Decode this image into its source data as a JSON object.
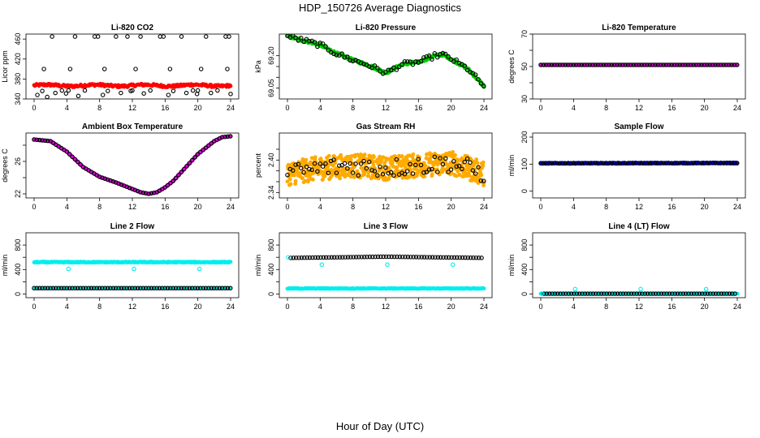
{
  "title": "HDP_150726  Average Diagnostics",
  "xlabel": "Hour of Day (UTC)",
  "chart_data": [
    {
      "type": "scatter",
      "title": "Li-820 CO2",
      "ylabel": "Licor ppm",
      "xlim": [
        0,
        24
      ],
      "ylim": [
        340,
        470
      ],
      "xticks": [
        0,
        4,
        8,
        12,
        16,
        20,
        24
      ],
      "yticks": [
        340,
        380,
        420,
        460
      ],
      "series": [
        {
          "color": "#ff0000",
          "marker": "filled",
          "x_range": [
            0,
            24
          ],
          "step": 0.1,
          "base": 367,
          "amp": 1.5,
          "period": 6,
          "noise": 2.5
        },
        {
          "color": "#000000",
          "marker": "open",
          "points": [
            [
              0.4,
              348
            ],
            [
              1.0,
              356
            ],
            [
              1.6,
              344
            ],
            [
              2.2,
              465
            ],
            [
              2.6,
              352
            ],
            [
              3.4,
              357
            ],
            [
              3.9,
              351
            ],
            [
              4.4,
              400
            ],
            [
              5.0,
              465
            ],
            [
              5.4,
              346
            ],
            [
              6.2,
              357
            ],
            [
              7.4,
              465
            ],
            [
              7.8,
              465
            ],
            [
              8.4,
              348
            ],
            [
              9.0,
              356
            ],
            [
              10.0,
              465
            ],
            [
              10.6,
              352
            ],
            [
              11.4,
              465
            ],
            [
              11.8,
              356
            ],
            [
              12.4,
              400
            ],
            [
              13.0,
              465
            ],
            [
              13.4,
              351
            ],
            [
              14.2,
              357
            ],
            [
              15.4,
              465
            ],
            [
              15.8,
              465
            ],
            [
              16.4,
              348
            ],
            [
              17.0,
              356
            ],
            [
              18.0,
              465
            ],
            [
              18.6,
              352
            ],
            [
              19.4,
              357
            ],
            [
              19.9,
              350
            ],
            [
              20.4,
              400
            ],
            [
              21.0,
              465
            ],
            [
              21.6,
              352
            ],
            [
              22.4,
              357
            ],
            [
              23.4,
              465
            ],
            [
              23.8,
              465
            ],
            [
              24.0,
              350
            ],
            [
              1.2,
              400
            ],
            [
              8.6,
              400
            ],
            [
              16.6,
              400
            ],
            [
              23.6,
              400
            ],
            [
              4.2,
              357
            ],
            [
              12.0,
              357
            ],
            [
              20.0,
              357
            ]
          ]
        }
      ]
    },
    {
      "type": "scatter",
      "title": "Li-820 Pressure",
      "ylabel": "kPa",
      "xlim": [
        0,
        24
      ],
      "ylim": [
        69.0,
        69.3
      ],
      "xticks": [
        0,
        4,
        8,
        12,
        16,
        20,
        24
      ],
      "yticks": [
        69.05,
        69.1,
        69.15,
        69.2
      ],
      "yticklabels": [
        "69.05",
        "",
        "",
        "69.20"
      ],
      "series": [
        {
          "color": "#00cc00",
          "marker": "filled",
          "curve": [
            [
              0,
              69.29
            ],
            [
              2,
              69.27
            ],
            [
              4,
              69.25
            ],
            [
              6,
              69.21
            ],
            [
              8,
              69.18
            ],
            [
              10,
              69.155
            ],
            [
              12,
              69.12
            ],
            [
              13,
              69.14
            ],
            [
              14,
              69.16
            ],
            [
              16,
              69.17
            ],
            [
              18,
              69.2
            ],
            [
              19,
              69.205
            ],
            [
              20,
              69.185
            ],
            [
              22,
              69.14
            ],
            [
              23,
              69.1
            ],
            [
              24,
              69.06
            ]
          ],
          "step": 0.08,
          "noise": 0.006
        },
        {
          "color": "#000000",
          "marker": "open",
          "curve": [
            [
              0,
              69.29
            ],
            [
              2,
              69.27
            ],
            [
              4,
              69.25
            ],
            [
              6,
              69.21
            ],
            [
              8,
              69.18
            ],
            [
              10,
              69.155
            ],
            [
              12,
              69.12
            ],
            [
              13,
              69.14
            ],
            [
              14,
              69.16
            ],
            [
              16,
              69.17
            ],
            [
              18,
              69.2
            ],
            [
              19,
              69.205
            ],
            [
              20,
              69.185
            ],
            [
              22,
              69.14
            ],
            [
              23,
              69.1
            ],
            [
              24,
              69.06
            ]
          ],
          "step": 0.333,
          "noise": 0.012
        }
      ]
    },
    {
      "type": "scatter",
      "title": "Li-820 Temperature",
      "ylabel": "degrees C",
      "xlim": [
        0,
        24
      ],
      "ylim": [
        30,
        70
      ],
      "xticks": [
        0,
        4,
        8,
        12,
        16,
        20,
        24
      ],
      "yticks": [
        30,
        40,
        50,
        60,
        70
      ],
      "yticklabels": [
        "30",
        "",
        "50",
        "",
        "70"
      ],
      "series": [
        {
          "color": "#dd00dd",
          "marker": "filled",
          "curve": [
            [
              0,
              51
            ],
            [
              24,
              51
            ]
          ],
          "step": 0.08,
          "noise": 0
        },
        {
          "color": "#000000",
          "marker": "open",
          "curve": [
            [
              0,
              51
            ],
            [
              24,
              51
            ]
          ],
          "step": 0.333,
          "noise": 0
        }
      ]
    },
    {
      "type": "scatter",
      "title": "Ambient Box Temperature",
      "ylabel": "degrees C",
      "xlim": [
        0,
        24
      ],
      "ylim": [
        21.5,
        29.5
      ],
      "xticks": [
        0,
        4,
        8,
        12,
        16,
        20,
        24
      ],
      "yticks": [
        22,
        24,
        26,
        28
      ],
      "yticklabels": [
        "22",
        "",
        "26",
        ""
      ],
      "series": [
        {
          "color": "#dd00dd",
          "marker": "filled",
          "curve": [
            [
              0,
              28.7
            ],
            [
              2,
              28.5
            ],
            [
              4,
              27.2
            ],
            [
              6,
              25.3
            ],
            [
              8,
              24.1
            ],
            [
              10,
              23.4
            ],
            [
              12,
              22.6
            ],
            [
              13,
              22.2
            ],
            [
              14,
              22.0
            ],
            [
              15,
              22.2
            ],
            [
              16,
              22.8
            ],
            [
              17,
              23.6
            ],
            [
              18,
              24.7
            ],
            [
              19,
              25.8
            ],
            [
              20,
              26.9
            ],
            [
              22,
              28.5
            ],
            [
              23,
              29.0
            ],
            [
              24,
              29.1
            ]
          ],
          "step": 0.08,
          "noise": 0
        },
        {
          "color": "#000000",
          "marker": "open",
          "curve": [
            [
              0,
              28.7
            ],
            [
              2,
              28.5
            ],
            [
              4,
              27.2
            ],
            [
              6,
              25.3
            ],
            [
              8,
              24.1
            ],
            [
              10,
              23.4
            ],
            [
              12,
              22.6
            ],
            [
              13,
              22.2
            ],
            [
              14,
              22.0
            ],
            [
              15,
              22.2
            ],
            [
              16,
              22.8
            ],
            [
              17,
              23.6
            ],
            [
              18,
              24.7
            ],
            [
              19,
              25.8
            ],
            [
              20,
              26.9
            ],
            [
              22,
              28.5
            ],
            [
              23,
              29.0
            ],
            [
              24,
              29.1
            ]
          ],
          "step": 0.333,
          "noise": 0
        }
      ]
    },
    {
      "type": "scatter",
      "title": "Gas Stream RH",
      "ylabel": "percent",
      "xlim": [
        0,
        24
      ],
      "ylim": [
        2.33,
        2.45
      ],
      "xticks": [
        0,
        4,
        8,
        12,
        16,
        20,
        24
      ],
      "yticks": [
        2.34,
        2.36,
        2.38,
        2.4,
        2.42
      ],
      "yticklabels": [
        "2.34",
        "",
        "",
        "2.40",
        ""
      ],
      "series": [
        {
          "color": "#ffaa00",
          "marker": "filled",
          "curve": [
            [
              0,
              2.375
            ],
            [
              4,
              2.385
            ],
            [
              8,
              2.39
            ],
            [
              12,
              2.385
            ],
            [
              16,
              2.39
            ],
            [
              20,
              2.395
            ],
            [
              24,
              2.375
            ]
          ],
          "step": 0.04,
          "noise": 0.022
        },
        {
          "color": "#000000",
          "marker": "open",
          "curve": [
            [
              0,
              2.375
            ],
            [
              4,
              2.385
            ],
            [
              8,
              2.39
            ],
            [
              12,
              2.385
            ],
            [
              16,
              2.39
            ],
            [
              20,
              2.395
            ],
            [
              24,
              2.375
            ]
          ],
          "step": 0.333,
          "noise": 0.018
        }
      ]
    },
    {
      "type": "scatter",
      "title": "Sample Flow",
      "ylabel": "ml/min",
      "xlim": [
        0,
        24
      ],
      "ylim": [
        -25,
        215
      ],
      "xticks": [
        0,
        4,
        8,
        12,
        16,
        20,
        24
      ],
      "yticks": [
        0,
        100,
        200
      ],
      "series": [
        {
          "color": "#0000cc",
          "marker": "filled",
          "curve": [
            [
              0,
              103
            ],
            [
              24,
              104
            ]
          ],
          "step": 0.08,
          "noise": 2
        },
        {
          "color": "#000000",
          "marker": "open",
          "curve": [
            [
              0,
              103
            ],
            [
              24,
              104
            ]
          ],
          "step": 0.333,
          "noise": 0
        }
      ]
    },
    {
      "type": "scatter",
      "title": "Line 2 Flow",
      "ylabel": "ml/min",
      "xlim": [
        0,
        24
      ],
      "ylim": [
        -60,
        1000
      ],
      "xticks": [
        0,
        4,
        8,
        12,
        16,
        20,
        24
      ],
      "yticks": [
        0,
        200,
        400,
        600,
        800
      ],
      "yticklabels": [
        "0",
        "",
        "400",
        "",
        "800"
      ],
      "series": [
        {
          "color": "#00eeee",
          "marker": "filled",
          "curve": [
            [
              0,
              520
            ],
            [
              24,
              520
            ]
          ],
          "step": 0.08,
          "noise": 8
        },
        {
          "color": "#00eeee",
          "marker": "filled",
          "curve": [
            [
              0,
              95
            ],
            [
              24,
              95
            ]
          ],
          "step": 0.08,
          "noise": 0
        },
        {
          "color": "#000000",
          "marker": "open",
          "curve": [
            [
              0,
              95
            ],
            [
              24,
              95
            ]
          ],
          "step": 0.333,
          "noise": 0
        },
        {
          "color": "#00eeee",
          "marker": "open",
          "points": [
            [
              0.1,
              520
            ],
            [
              4.2,
              410
            ],
            [
              12.2,
              410
            ],
            [
              20.2,
              410
            ]
          ]
        }
      ]
    },
    {
      "type": "scatter",
      "title": "Line 3 Flow",
      "ylabel": "ml/min",
      "xlim": [
        0,
        24
      ],
      "ylim": [
        -60,
        1000
      ],
      "xticks": [
        0,
        4,
        8,
        12,
        16,
        20,
        24
      ],
      "yticks": [
        0,
        200,
        400,
        600,
        800
      ],
      "yticklabels": [
        "0",
        "",
        "400",
        "",
        "800"
      ],
      "series": [
        {
          "color": "#00eeee",
          "marker": "filled",
          "curve": [
            [
              0,
              90
            ],
            [
              24,
              90
            ]
          ],
          "step": 0.08,
          "noise": 6
        },
        {
          "color": "#000000",
          "marker": "open",
          "curve": [
            [
              0.4,
              590
            ],
            [
              12,
              610
            ],
            [
              24,
              590
            ]
          ],
          "step": 0.333,
          "noise": 0
        },
        {
          "color": "#00eeee",
          "marker": "open",
          "points": [
            [
              0.1,
              600
            ],
            [
              4.2,
              480
            ],
            [
              12.2,
              480
            ],
            [
              20.2,
              480
            ]
          ]
        }
      ]
    },
    {
      "type": "scatter",
      "title": "Line 4 (LT) Flow",
      "ylabel": "ml/min",
      "xlim": [
        0,
        24
      ],
      "ylim": [
        -60,
        1000
      ],
      "xticks": [
        0,
        4,
        8,
        12,
        16,
        20,
        24
      ],
      "yticks": [
        0,
        200,
        400,
        600,
        800
      ],
      "yticklabels": [
        "0",
        "",
        "400",
        "",
        "800"
      ],
      "series": [
        {
          "color": "#00eeee",
          "marker": "filled",
          "curve": [
            [
              0,
              5
            ],
            [
              24,
              5
            ]
          ],
          "step": 0.08,
          "noise": 0
        },
        {
          "color": "#000000",
          "marker": "open",
          "curve": [
            [
              0.4,
              5
            ],
            [
              24,
              5
            ]
          ],
          "step": 0.333,
          "noise": 0
        },
        {
          "color": "#00eeee",
          "marker": "open",
          "points": [
            [
              0.1,
              5
            ],
            [
              4.2,
              80
            ],
            [
              12.2,
              80
            ],
            [
              20.2,
              80
            ]
          ]
        }
      ]
    }
  ]
}
